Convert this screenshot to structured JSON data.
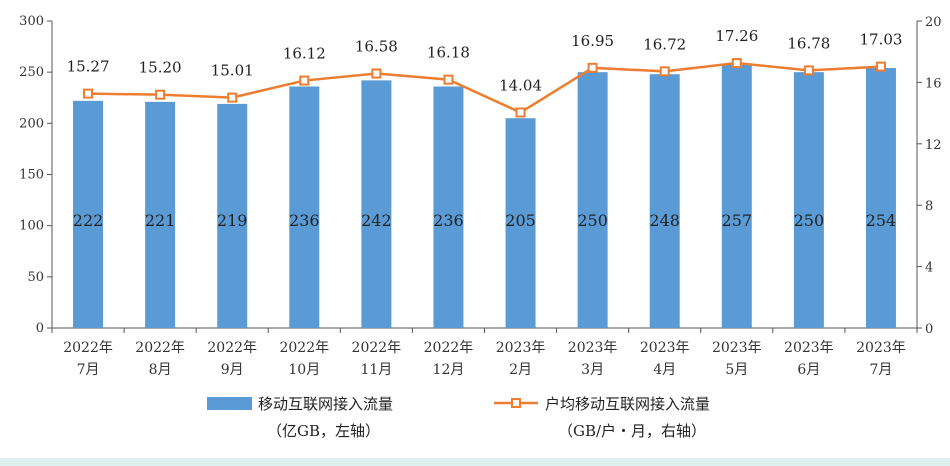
{
  "chart_data": {
    "type": "bar",
    "title": "",
    "xlabel": "",
    "categories": [
      [
        "2022年",
        "7月"
      ],
      [
        "2022年",
        "8月"
      ],
      [
        "2022年",
        "9月"
      ],
      [
        "2022年",
        "10月"
      ],
      [
        "2022年",
        "11月"
      ],
      [
        "2022年",
        "12月"
      ],
      [
        "2023年",
        "2月"
      ],
      [
        "2023年",
        "3月"
      ],
      [
        "2023年",
        "4月"
      ],
      [
        "2023年",
        "5月"
      ],
      [
        "2023年",
        "6月"
      ],
      [
        "2023年",
        "7月"
      ]
    ],
    "series": [
      {
        "name": "移动互联网接入流量",
        "name_note": "（亿GB，左轴）",
        "type": "bar",
        "axis": "left",
        "color": "#5b9bd5",
        "values": [
          222,
          221,
          219,
          236,
          242,
          236,
          205,
          250,
          248,
          257,
          250,
          254
        ],
        "labels": [
          "222",
          "221",
          "219",
          "236",
          "242",
          "236",
          "205",
          "250",
          "248",
          "257",
          "250",
          "254"
        ]
      },
      {
        "name": "户均移动互联网接入流量",
        "name_note": "（GB/户・月，右轴）",
        "type": "line",
        "axis": "right",
        "color": "#ed7d31",
        "values": [
          15.27,
          15.2,
          15.01,
          16.12,
          16.58,
          16.18,
          14.04,
          16.95,
          16.72,
          17.26,
          16.78,
          17.03
        ],
        "labels": [
          "15.27",
          "15.20",
          "15.01",
          "16.12",
          "16.58",
          "16.18",
          "14.04",
          "16.95",
          "16.72",
          "17.26",
          "16.78",
          "17.03"
        ]
      }
    ],
    "y_left": {
      "min": 0,
      "max": 300,
      "ticks": [
        0,
        50,
        100,
        150,
        200,
        250,
        300
      ]
    },
    "y_right": {
      "min": 0,
      "max": 20,
      "ticks": [
        0,
        4,
        8,
        12,
        16,
        20
      ]
    },
    "grid": false,
    "legend_position": "bottom"
  }
}
